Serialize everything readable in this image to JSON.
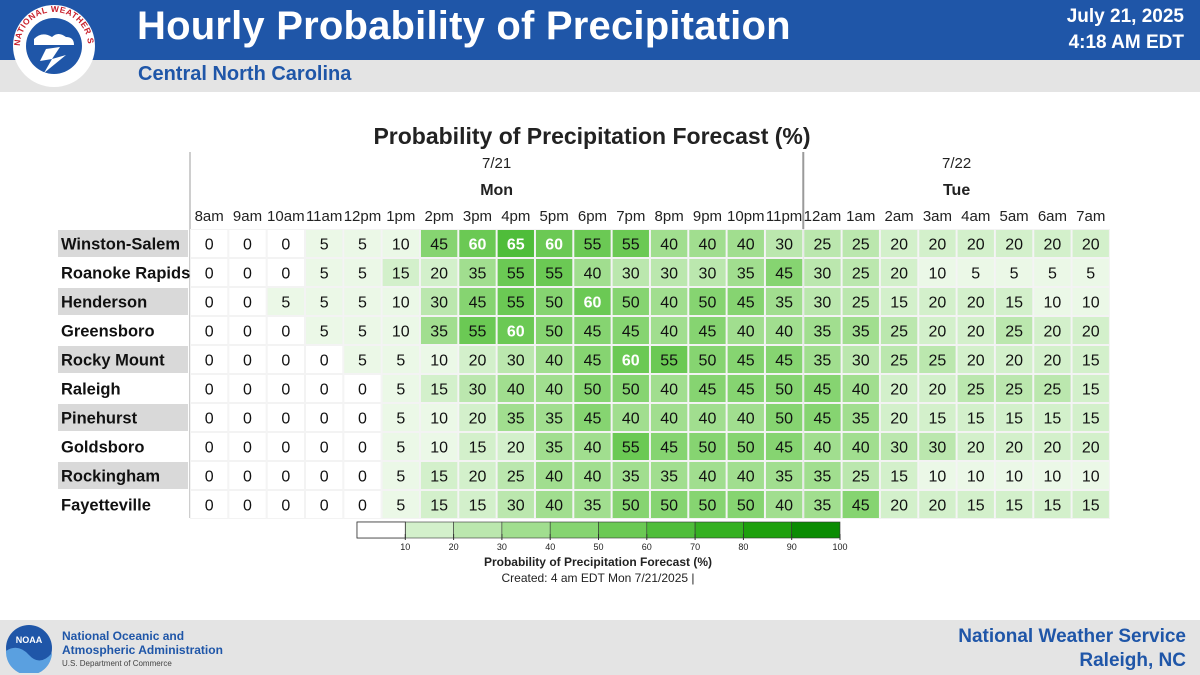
{
  "header": {
    "title": "Hourly Probability of Precipitation",
    "subtitle": "Central North Carolina",
    "date": "July 21, 2025",
    "time": "4:18 AM EDT",
    "logo_text": "NATIONAL WEATHER SERVICE"
  },
  "footer": {
    "noaa_logo_text": "NOAA",
    "noaa_name_line1": "National Oceanic and",
    "noaa_name_line2": "Atmospheric Administration",
    "noaa_dept": "U.S. Department of Commerce",
    "office_line1": "National Weather Service",
    "office_line2": "Raleigh, NC"
  },
  "colors": {
    "header_blue": "#1f56a8",
    "header_grey": "#e4e4e4",
    "scale": [
      "#ffffff",
      "#ebf8e7",
      "#d3f0cb",
      "#bbe7ae",
      "#a1de8f",
      "#86d471",
      "#6bc954",
      "#4fbd3a",
      "#35b021",
      "#1ea00d",
      "#0b8c03"
    ]
  },
  "chart_data": {
    "type": "table",
    "title": "Probability of Precipitation Forecast (%)",
    "days": [
      {
        "date": "7/21",
        "day": "Mon"
      },
      {
        "date": "7/22",
        "day": "Tue"
      }
    ],
    "hours": [
      "8am",
      "9am",
      "10am",
      "11am",
      "12pm",
      "1pm",
      "2pm",
      "3pm",
      "4pm",
      "5pm",
      "6pm",
      "7pm",
      "8pm",
      "9pm",
      "10pm",
      "11pm",
      "12am",
      "1am",
      "2am",
      "3am",
      "4am",
      "5am",
      "6am",
      "7am"
    ],
    "day_break_after_index": 15,
    "rows": [
      {
        "location": "Winston-Salem",
        "values": [
          0,
          0,
          0,
          5,
          5,
          10,
          45,
          60,
          65,
          60,
          55,
          55,
          40,
          40,
          40,
          30,
          25,
          25,
          20,
          20,
          20,
          20,
          20,
          20
        ]
      },
      {
        "location": "Roanoke Rapids",
        "values": [
          0,
          0,
          0,
          5,
          5,
          15,
          20,
          35,
          55,
          55,
          40,
          30,
          30,
          30,
          35,
          45,
          30,
          25,
          20,
          10,
          5,
          5,
          5,
          5
        ]
      },
      {
        "location": "Henderson",
        "values": [
          0,
          0,
          5,
          5,
          5,
          10,
          30,
          45,
          55,
          50,
          60,
          50,
          40,
          50,
          45,
          35,
          30,
          25,
          15,
          20,
          20,
          15,
          10,
          10
        ]
      },
      {
        "location": "Greensboro",
        "values": [
          0,
          0,
          0,
          5,
          5,
          10,
          35,
          55,
          60,
          50,
          45,
          45,
          40,
          45,
          40,
          40,
          35,
          35,
          25,
          20,
          20,
          25,
          20,
          20
        ]
      },
      {
        "location": "Rocky Mount",
        "values": [
          0,
          0,
          0,
          0,
          5,
          5,
          10,
          20,
          30,
          40,
          45,
          60,
          55,
          50,
          45,
          45,
          35,
          30,
          25,
          25,
          20,
          20,
          20,
          15
        ]
      },
      {
        "location": "Raleigh",
        "values": [
          0,
          0,
          0,
          0,
          0,
          5,
          15,
          30,
          40,
          40,
          50,
          50,
          40,
          45,
          45,
          50,
          45,
          40,
          20,
          20,
          25,
          25,
          25,
          15
        ]
      },
      {
        "location": "Pinehurst",
        "values": [
          0,
          0,
          0,
          0,
          0,
          5,
          10,
          20,
          35,
          35,
          45,
          40,
          40,
          40,
          40,
          50,
          45,
          35,
          20,
          15,
          15,
          15,
          15,
          15
        ]
      },
      {
        "location": "Goldsboro",
        "values": [
          0,
          0,
          0,
          0,
          0,
          5,
          10,
          15,
          20,
          35,
          40,
          55,
          45,
          50,
          50,
          45,
          40,
          40,
          30,
          30,
          20,
          20,
          20,
          20
        ]
      },
      {
        "location": "Rockingham",
        "values": [
          0,
          0,
          0,
          0,
          0,
          5,
          15,
          20,
          25,
          40,
          40,
          35,
          35,
          40,
          40,
          35,
          35,
          25,
          15,
          10,
          10,
          10,
          10,
          10
        ]
      },
      {
        "location": "Fayetteville",
        "values": [
          0,
          0,
          0,
          0,
          0,
          5,
          15,
          15,
          30,
          40,
          35,
          50,
          50,
          50,
          50,
          40,
          35,
          45,
          20,
          20,
          15,
          15,
          15,
          15
        ]
      }
    ],
    "colorbar": {
      "ticks": [
        "10",
        "20",
        "30",
        "40",
        "50",
        "60",
        "70",
        "80",
        "90",
        "100"
      ],
      "range": [
        0,
        100
      ],
      "label": "Probability of Precipitation Forecast (%)"
    },
    "created": "Created: 4 am EDT Mon 7/21/2025  |"
  }
}
